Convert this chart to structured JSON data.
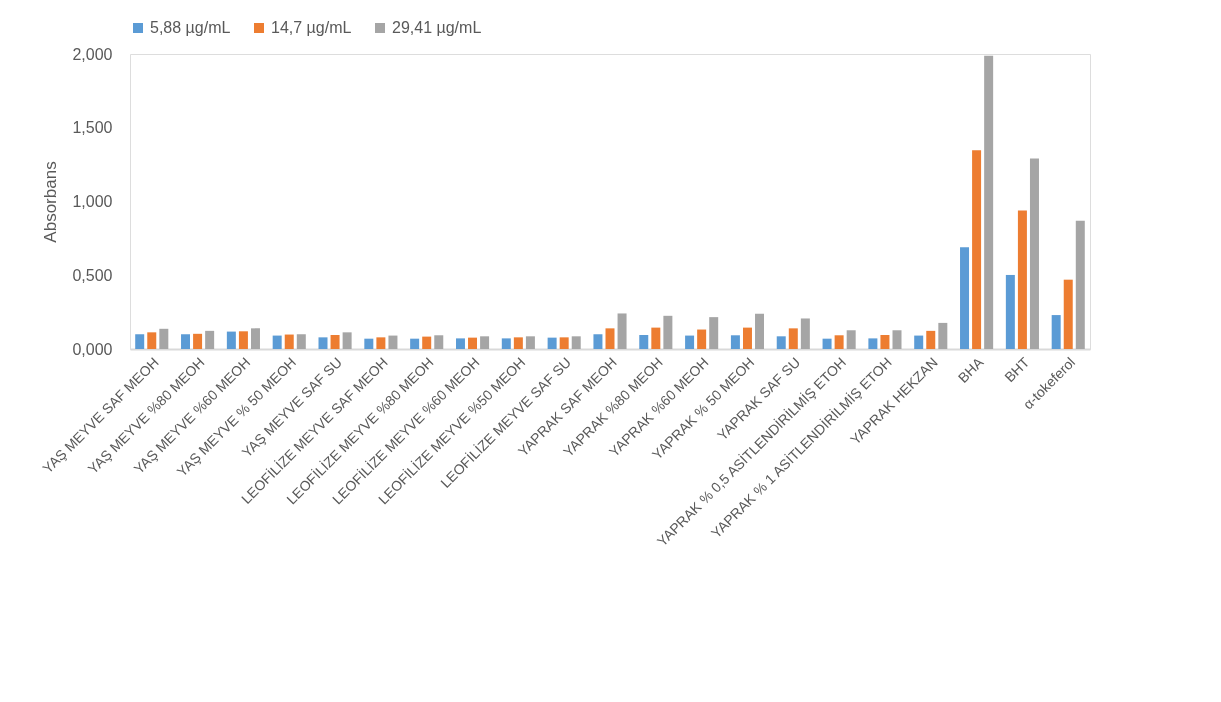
{
  "chart_data": {
    "type": "bar",
    "ylabel": "Absorbans",
    "categories": [
      "YAŞ MEYVE SAF MEOH",
      "YAŞ MEYVE %80 MEOH",
      "YAŞ MEYVE %60 MEOH",
      "YAŞ MEYVE % 50 MEOH",
      "YAŞ MEYVE SAF SU",
      "LEOFİLİZE MEYVE SAF MEOH",
      "LEOFİLİZE MEYVE %80 MEOH",
      "LEOFİLİZE MEYVE %60 MEOH",
      "LEOFİLİZE MEYVE %50 MEOH",
      "LEOFİLİZE MEYVE SAF SU",
      "YAPRAK SAF MEOH",
      "YAPRAK %80 MEOH",
      "YAPRAK %60 MEOH",
      "YAPRAK % 50 MEOH",
      "YAPRAK SAF SU",
      "YAPRAK % 0,5 ASİTLENDİRİLMİŞ ETOH",
      "YAPRAK % 1 ASİTLENDİRİLMİŞ ETOH",
      "YAPRAK HEKZAN",
      "BHA",
      "BHT",
      "α-tokeferol"
    ],
    "series": [
      {
        "name": "5,88 µg/mL",
        "color": "#5b9bd5",
        "values": [
          0.1,
          0.1,
          0.118,
          0.091,
          0.079,
          0.07,
          0.07,
          0.072,
          0.072,
          0.077,
          0.1,
          0.095,
          0.091,
          0.093,
          0.086,
          0.07,
          0.072,
          0.091,
          0.689,
          0.502,
          0.23
        ]
      },
      {
        "name": "14,7 µg/mL",
        "color": "#ed7d31",
        "values": [
          0.113,
          0.103,
          0.12,
          0.098,
          0.095,
          0.079,
          0.084,
          0.077,
          0.079,
          0.079,
          0.14,
          0.145,
          0.132,
          0.145,
          0.14,
          0.093,
          0.095,
          0.123,
          1.347,
          0.939,
          0.47
        ]
      },
      {
        "name": "29,41 µg/mL",
        "color": "#a5a5a5",
        "values": [
          0.137,
          0.123,
          0.14,
          0.1,
          0.113,
          0.091,
          0.093,
          0.086,
          0.086,
          0.086,
          0.241,
          0.225,
          0.216,
          0.239,
          0.207,
          0.127,
          0.127,
          0.177,
          1.988,
          1.292,
          0.87
        ]
      }
    ],
    "ylim": [
      0,
      2.0
    ],
    "yticks": [
      {
        "value": 0,
        "label": "0,000"
      },
      {
        "value": 0.5,
        "label": "0,500"
      },
      {
        "value": 1.0,
        "label": "1,000"
      },
      {
        "value": 1.5,
        "label": "1,500"
      },
      {
        "value": 2.0,
        "label": "2,000"
      }
    ],
    "legend": "top",
    "grid": false
  }
}
